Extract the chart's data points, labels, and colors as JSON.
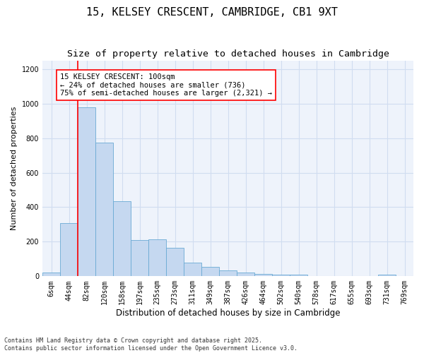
{
  "title": "15, KELSEY CRESCENT, CAMBRIDGE, CB1 9XT",
  "subtitle": "Size of property relative to detached houses in Cambridge",
  "xlabel": "Distribution of detached houses by size in Cambridge",
  "ylabel": "Number of detached properties",
  "categories": [
    "6sqm",
    "44sqm",
    "82sqm",
    "120sqm",
    "158sqm",
    "197sqm",
    "235sqm",
    "273sqm",
    "311sqm",
    "349sqm",
    "387sqm",
    "426sqm",
    "464sqm",
    "502sqm",
    "540sqm",
    "578sqm",
    "617sqm",
    "655sqm",
    "693sqm",
    "731sqm",
    "769sqm"
  ],
  "values": [
    22,
    310,
    980,
    775,
    435,
    210,
    215,
    165,
    80,
    55,
    35,
    20,
    15,
    10,
    8,
    0,
    0,
    0,
    0,
    10,
    0
  ],
  "bar_color": "#c5d8f0",
  "bar_edge_color": "#6aaad4",
  "vline_x_idx": 2,
  "vline_color": "red",
  "annotation_text": "15 KELSEY CRESCENT: 100sqm\n← 24% of detached houses are smaller (736)\n75% of semi-detached houses are larger (2,321) →",
  "annotation_box_color": "white",
  "annotation_box_edge_color": "red",
  "ylim": [
    0,
    1250
  ],
  "yticks": [
    0,
    200,
    400,
    600,
    800,
    1000,
    1200
  ],
  "background_color": "#eef3fb",
  "grid_color": "#d0ddf0",
  "footer_text": "Contains HM Land Registry data © Crown copyright and database right 2025.\nContains public sector information licensed under the Open Government Licence v3.0.",
  "title_fontsize": 11,
  "subtitle_fontsize": 9.5,
  "xlabel_fontsize": 8.5,
  "ylabel_fontsize": 8,
  "tick_fontsize": 7,
  "annotation_fontsize": 7.5,
  "footer_fontsize": 6
}
